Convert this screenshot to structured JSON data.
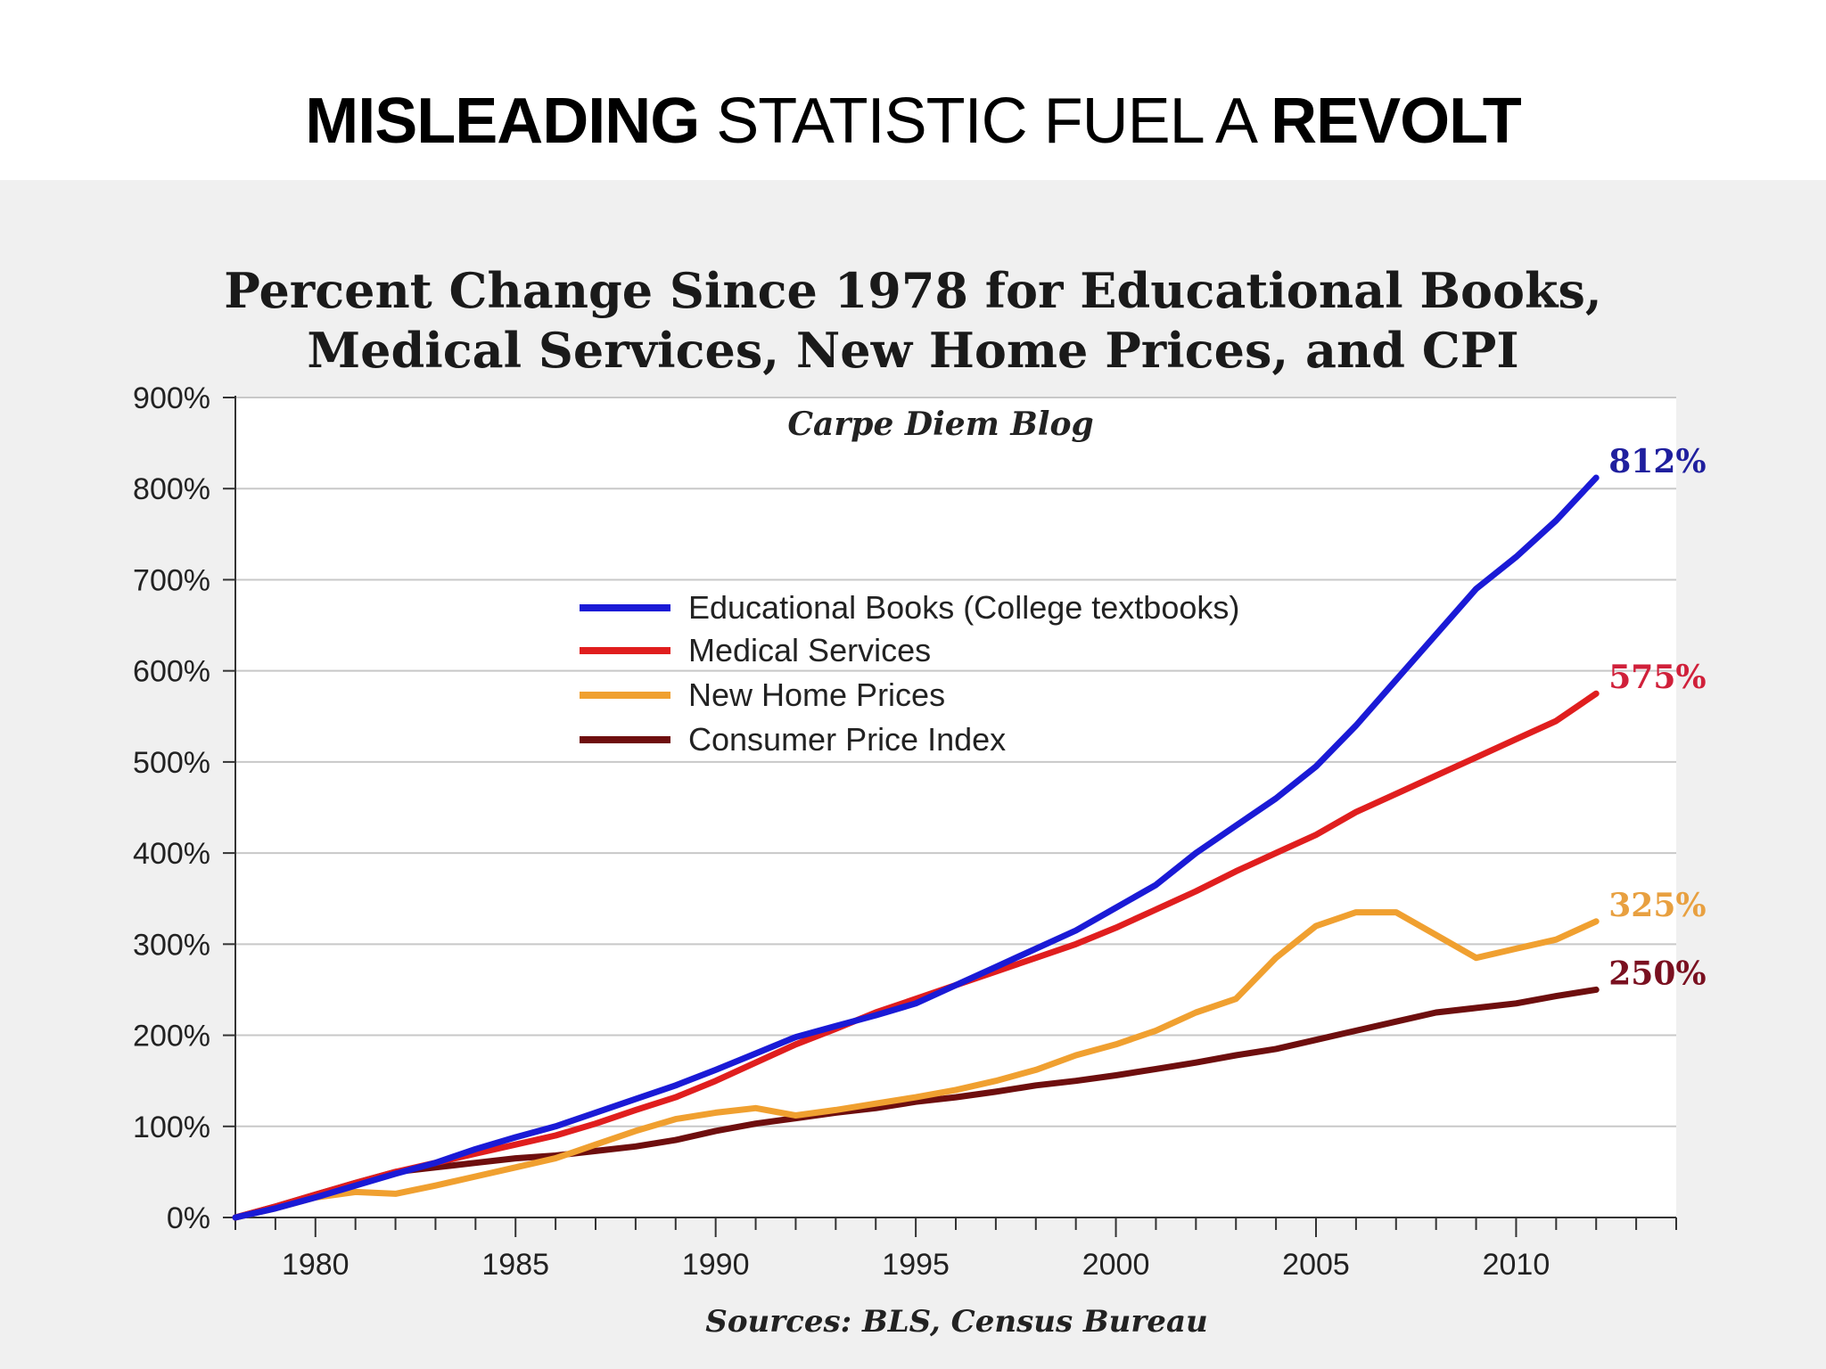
{
  "slide": {
    "title_part1": "MISLEADING",
    "title_part2": "STATISTIC FUEL A",
    "title_part3": "REVOLT"
  },
  "chart_data": {
    "type": "line",
    "title_line1": "Percent Change Since 1978 for Educational Books,",
    "title_line2": "Medical Services, New Home Prices, and CPI",
    "watermark": "Carpe Diem Blog",
    "source": "Sources: BLS, Census Bureau",
    "xlabel": "",
    "ylabel": "",
    "xlim": [
      1978,
      2014
    ],
    "ylim": [
      0,
      900
    ],
    "x_ticks": [
      1980,
      1985,
      1990,
      1995,
      2000,
      2005,
      2010
    ],
    "y_ticks": [
      0,
      100,
      200,
      300,
      400,
      500,
      600,
      700,
      800,
      900
    ],
    "y_tick_labels": [
      "0%",
      "100%",
      "200%",
      "300%",
      "400%",
      "500%",
      "600%",
      "700%",
      "800%",
      "900%"
    ],
    "grid": "horizontal",
    "legend_placement": "center",
    "x": [
      1978,
      1979,
      1980,
      1981,
      1982,
      1983,
      1984,
      1985,
      1986,
      1987,
      1988,
      1989,
      1990,
      1991,
      1992,
      1993,
      1994,
      1995,
      1996,
      1997,
      1998,
      1999,
      2000,
      2001,
      2002,
      2003,
      2004,
      2005,
      2006,
      2007,
      2008,
      2009,
      2010,
      2011,
      2012
    ],
    "series": [
      {
        "name": "Educational Books  (College textbooks)",
        "color": "#1a1ad6",
        "end_label": "812%",
        "end_label_color": "#1f1f9e",
        "values": [
          0,
          10,
          22,
          35,
          48,
          60,
          75,
          88,
          100,
          115,
          130,
          145,
          162,
          180,
          198,
          210,
          222,
          235,
          255,
          275,
          295,
          315,
          340,
          365,
          400,
          430,
          460,
          495,
          540,
          590,
          640,
          690,
          725,
          765,
          812
        ]
      },
      {
        "name": "Medical Services",
        "color": "#e01e1e",
        "end_label": "575%",
        "end_label_color": "#d0203a",
        "values": [
          0,
          12,
          25,
          38,
          50,
          60,
          70,
          80,
          90,
          103,
          118,
          132,
          150,
          170,
          190,
          207,
          225,
          240,
          255,
          270,
          285,
          300,
          318,
          338,
          358,
          380,
          400,
          420,
          445,
          465,
          485,
          505,
          525,
          545,
          575
        ]
      },
      {
        "name": "New Home Prices",
        "color": "#f0a030",
        "end_label": "325%",
        "end_label_color": "#e8a040",
        "values": [
          0,
          10,
          22,
          28,
          26,
          35,
          45,
          55,
          65,
          80,
          95,
          108,
          115,
          120,
          112,
          118,
          125,
          132,
          140,
          150,
          162,
          178,
          190,
          205,
          225,
          240,
          285,
          320,
          335,
          335,
          310,
          285,
          295,
          305,
          325
        ]
      },
      {
        "name": "Consumer Price Index",
        "color": "#6e0e0e",
        "end_label": "250%",
        "end_label_color": "#7a1020",
        "values": [
          0,
          12,
          25,
          38,
          50,
          55,
          60,
          65,
          68,
          73,
          78,
          85,
          95,
          103,
          109,
          115,
          120,
          127,
          132,
          138,
          145,
          150,
          156,
          163,
          170,
          178,
          185,
          195,
          205,
          215,
          225,
          230,
          235,
          243,
          250
        ]
      }
    ]
  }
}
